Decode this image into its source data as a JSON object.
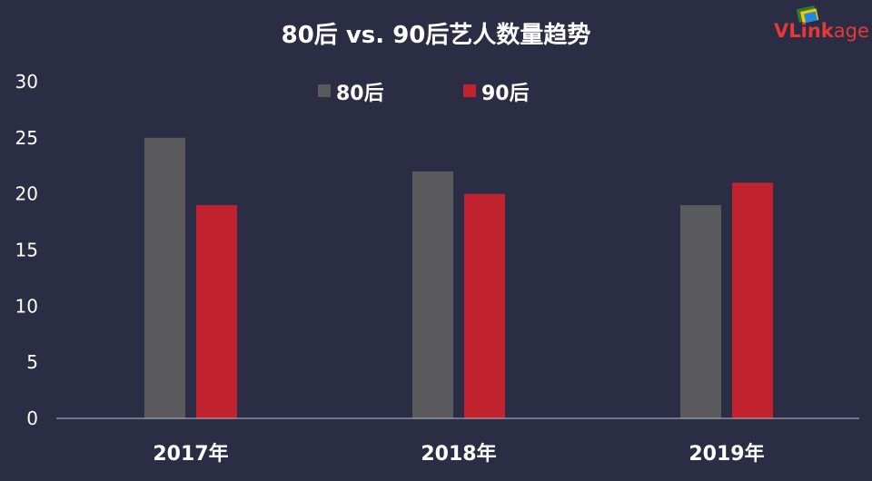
{
  "chart_data": {
    "type": "bar",
    "title": "80后 vs. 90后艺人数量趋势",
    "categories": [
      "2017年",
      "2018年",
      "2019年"
    ],
    "series": [
      {
        "name": "80后",
        "values": [
          25,
          22,
          19
        ]
      },
      {
        "name": "90后",
        "values": [
          19,
          20,
          21
        ]
      }
    ],
    "ylim": [
      0,
      30
    ],
    "yticks": [
      0,
      5,
      10,
      15,
      20,
      25,
      30
    ],
    "grid": false,
    "legend_position": "top-center"
  },
  "colors": {
    "background": "#2b2d45",
    "series": [
      "#5a5a5c",
      "#c0222e"
    ],
    "axis": "#bdbdc7"
  },
  "logo": {
    "text": "VLinkage",
    "icon": "vlinkage-logo-icon"
  }
}
